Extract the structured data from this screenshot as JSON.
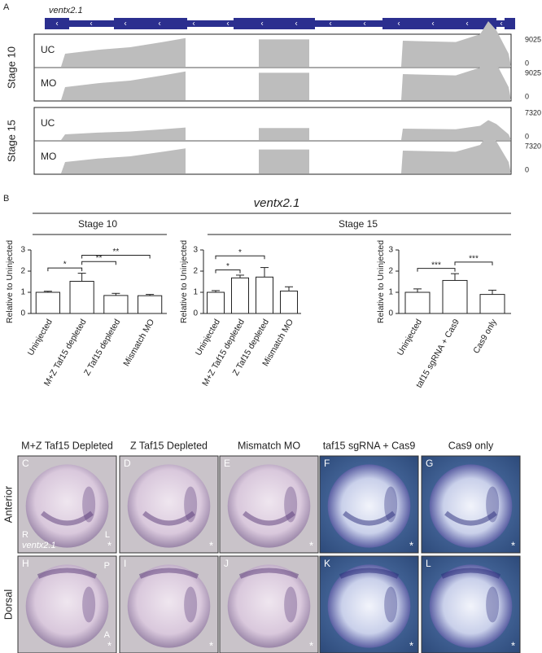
{
  "panel_a": {
    "label": "A",
    "gene": "ventx2.1",
    "stages": [
      {
        "name": "Stage 10",
        "tracks": [
          {
            "name": "UC",
            "max": 9025,
            "min": 0
          },
          {
            "name": "MO",
            "max": 9025,
            "min": 0
          }
        ]
      },
      {
        "name": "Stage 15",
        "tracks": [
          {
            "name": "UC",
            "max": 7320,
            "min": 0
          },
          {
            "name": "MO",
            "max": 7320,
            "min": 0
          }
        ]
      }
    ]
  },
  "panel_b": {
    "label": "B",
    "title": "ventx2.1",
    "groups": [
      "Stage 10",
      "Stage 15"
    ]
  },
  "chart_data": [
    {
      "type": "bar",
      "ylabel": "Relative to Uninjected",
      "categories": [
        "Uninjected",
        "M+Z Taf15  depleted",
        "Z Taf15  depleted",
        "Mismatch MO"
      ],
      "values": [
        1.0,
        1.52,
        0.85,
        0.84
      ],
      "errors": [
        0.05,
        0.38,
        0.1,
        0.06
      ],
      "color": "#ffffff",
      "ylim": [
        0,
        3
      ],
      "yticks": [
        0,
        1,
        2,
        3
      ],
      "significance": [
        {
          "label": "*",
          "between": [
            "Uninjected",
            "M+Z Taf15  depleted"
          ]
        },
        {
          "label": "**",
          "between": [
            "M+Z Taf15  depleted",
            "Z Taf15  depleted"
          ]
        },
        {
          "label": "**",
          "between": [
            "M+Z Taf15  depleted",
            "Mismatch MO"
          ]
        }
      ]
    },
    {
      "type": "bar",
      "ylabel": "Relative to Uninjected",
      "categories": [
        "Uninjected",
        "M+Z Taf15  depleted",
        "Z Taf15  depleted",
        "Mismatch MO"
      ],
      "values": [
        1.0,
        1.68,
        1.72,
        1.06
      ],
      "errors": [
        0.08,
        0.13,
        0.45,
        0.2
      ],
      "color": "#ffffff",
      "ylim": [
        0,
        3
      ],
      "yticks": [
        0,
        1,
        2,
        3
      ],
      "significance": [
        {
          "label": "*",
          "between": [
            "Uninjected",
            "M+Z Taf15  depleted"
          ]
        },
        {
          "label": "*",
          "between": [
            "Uninjected",
            "Z Taf15  depleted"
          ]
        }
      ]
    },
    {
      "type": "bar",
      "ylabel": "Relative to Uninjected",
      "categories": [
        "Uninjected",
        "taf15 sgRNA + Cas9",
        "Cas9 only"
      ],
      "values": [
        1.0,
        1.56,
        0.9
      ],
      "errors": [
        0.16,
        0.32,
        0.2
      ],
      "color": "#ffffff",
      "ylim": [
        0,
        3
      ],
      "yticks": [
        0,
        1,
        2,
        3
      ],
      "significance": [
        {
          "label": "***",
          "between": [
            "Uninjected",
            "taf15 sgRNA + Cas9"
          ]
        },
        {
          "label": "***",
          "between": [
            "taf15 sgRNA + Cas9",
            "Cas9 only"
          ]
        }
      ]
    }
  ],
  "panel_c": {
    "columns": [
      "M+Z Taf15  Depleted",
      "Z Taf15  Depleted",
      "Mismatch MO",
      "taf15 sgRNA + Cas9",
      "Cas9 only"
    ],
    "rows": [
      "Anterior",
      "Dorsal"
    ],
    "panels": [
      {
        "letter": "C",
        "left": "R",
        "gene": "ventx2.1",
        "right": "L",
        "asterisk": "*"
      },
      {
        "letter": "D",
        "asterisk": "*"
      },
      {
        "letter": "E",
        "asterisk": "*"
      },
      {
        "letter": "F",
        "asterisk": "*"
      },
      {
        "letter": "G",
        "asterisk": "*"
      },
      {
        "letter": "H",
        "top": "P",
        "bottom": "A",
        "asterisk": "*"
      },
      {
        "letter": "I",
        "asterisk": "*"
      },
      {
        "letter": "J",
        "asterisk": "*"
      },
      {
        "letter": "K",
        "asterisk": "*"
      },
      {
        "letter": "L",
        "asterisk": "*"
      }
    ]
  }
}
